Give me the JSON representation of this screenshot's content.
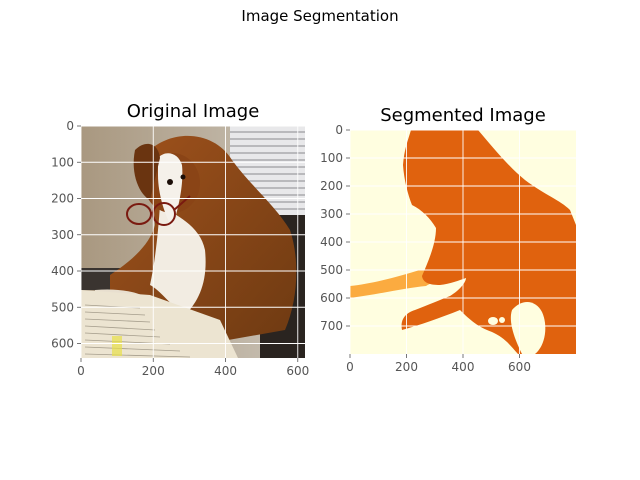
{
  "figure": {
    "suptitle": "Image Segmentation"
  },
  "chart_data": [
    {
      "type": "image",
      "title": "Original Image",
      "subject": "dog wearing glasses sitting at a desk with papers",
      "xlim": [
        0,
        620
      ],
      "ylim": [
        640,
        0
      ],
      "xticks": [
        0,
        200,
        400,
        600
      ],
      "yticks": [
        0,
        100,
        200,
        300,
        400,
        500,
        600
      ],
      "grid": true
    },
    {
      "type": "image",
      "title": "Segmented Image",
      "colormap": [
        "#fffee0",
        "#fbab40",
        "#e0620e"
      ],
      "xlim": [
        0,
        800
      ],
      "ylim": [
        800,
        0
      ],
      "xticks": [
        0,
        200,
        400,
        600
      ],
      "yticks": [
        0,
        100,
        200,
        300,
        400,
        500,
        600,
        700
      ],
      "grid": true
    }
  ]
}
